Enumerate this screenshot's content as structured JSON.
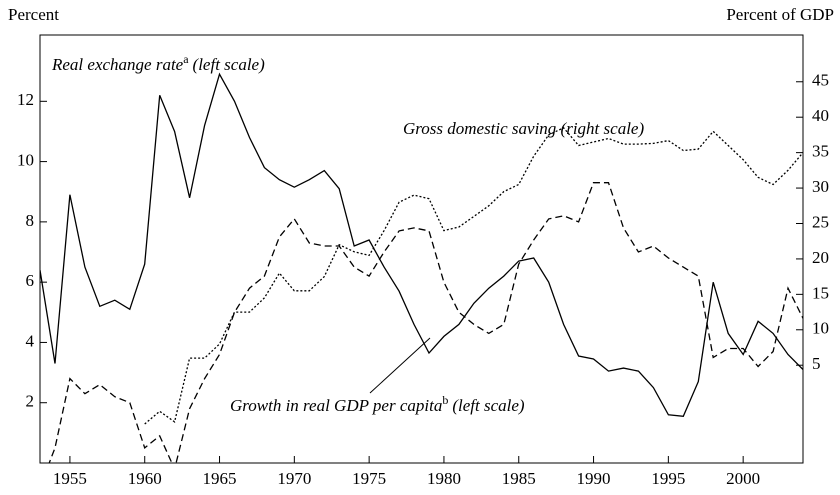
{
  "chart_data": {
    "type": "line",
    "y_label": "Percent",
    "y2_label": "Percent of GDP",
    "x": [
      1953,
      1954,
      1955,
      1956,
      1957,
      1958,
      1959,
      1960,
      1961,
      1962,
      1963,
      1964,
      1965,
      1966,
      1967,
      1968,
      1969,
      1970,
      1971,
      1972,
      1973,
      1974,
      1975,
      1976,
      1977,
      1978,
      1979,
      1980,
      1981,
      1982,
      1983,
      1984,
      1985,
      1986,
      1987,
      1988,
      1989,
      1990,
      1991,
      1992,
      1993,
      1994,
      1995,
      1996,
      1997,
      1998,
      1999,
      2000,
      2001,
      2002,
      2003,
      2004
    ],
    "xlim": [
      1953,
      2004
    ],
    "xticks": [
      1955,
      1960,
      1965,
      1970,
      1975,
      1980,
      1985,
      1990,
      1995,
      2000
    ],
    "ylim": [
      0,
      14.2
    ],
    "yticks": [
      2,
      4,
      6,
      8,
      10,
      12
    ],
    "y2lim": [
      -8.8,
      51.6
    ],
    "y2ticks": [
      5,
      10,
      15,
      20,
      25,
      30,
      35,
      40,
      45
    ],
    "series": [
      {
        "name": "Real exchange rate",
        "note": "a",
        "scale_label": "(left scale)",
        "color": "#000000",
        "dash": "solid",
        "values": [
          6.4,
          3.3,
          8.9,
          6.5,
          5.2,
          5.4,
          5.1,
          6.6,
          12.2,
          11.0,
          8.8,
          11.2,
          12.9,
          12.0,
          10.8,
          9.8,
          9.4,
          9.15,
          9.4,
          9.7,
          9.1,
          7.2,
          7.4,
          6.5,
          5.7,
          4.6,
          3.65,
          4.2,
          4.6,
          5.3,
          5.8,
          6.2,
          6.7,
          6.8,
          6.0,
          4.6,
          3.55,
          3.45,
          3.05,
          3.15,
          3.05,
          2.5,
          1.6,
          1.55,
          2.7,
          6.0,
          4.3,
          3.6,
          4.7,
          4.3,
          3.6,
          3.1
        ]
      },
      {
        "name": "Growth in real GDP per capita",
        "note": "b",
        "scale_label": "(left scale)",
        "color": "#000000",
        "dash": "dashed",
        "values": [
          -0.8,
          0.5,
          2.8,
          2.3,
          2.6,
          2.2,
          2.0,
          0.5,
          0.9,
          -0.2,
          1.8,
          2.8,
          3.6,
          5.0,
          5.8,
          6.2,
          7.5,
          8.1,
          7.3,
          7.2,
          7.2,
          6.5,
          6.2,
          7.0,
          7.7,
          7.8,
          7.7,
          6.0,
          5.0,
          4.6,
          4.3,
          4.6,
          6.6,
          7.4,
          8.1,
          8.2,
          8.0,
          9.3,
          9.3,
          7.8,
          7.0,
          7.2,
          6.8,
          6.5,
          6.2,
          3.5,
          3.8,
          3.8,
          3.2,
          3.7,
          5.8,
          4.8
        ]
      },
      {
        "name": "Gross domestic saving (right scale)",
        "color": "#000000",
        "dash": "dotted",
        "axis": "y2",
        "values": [
          null,
          null,
          null,
          null,
          null,
          null,
          null,
          -3.3,
          -1.5,
          -3.0,
          6.0,
          6.0,
          8.0,
          12.5,
          12.5,
          14.5,
          18.0,
          15.5,
          15.5,
          17.5,
          22.0,
          21.0,
          20.5,
          24.0,
          28.0,
          29.0,
          28.5,
          24.0,
          24.5,
          26.0,
          27.5,
          29.5,
          30.5,
          34.5,
          37.5,
          38.5,
          36.0,
          36.5,
          37.0,
          36.2,
          36.2,
          36.3,
          36.7,
          35.3,
          35.5,
          38.0,
          36.0,
          34.0,
          31.5,
          30.5,
          32.5,
          35.0
        ]
      }
    ]
  }
}
